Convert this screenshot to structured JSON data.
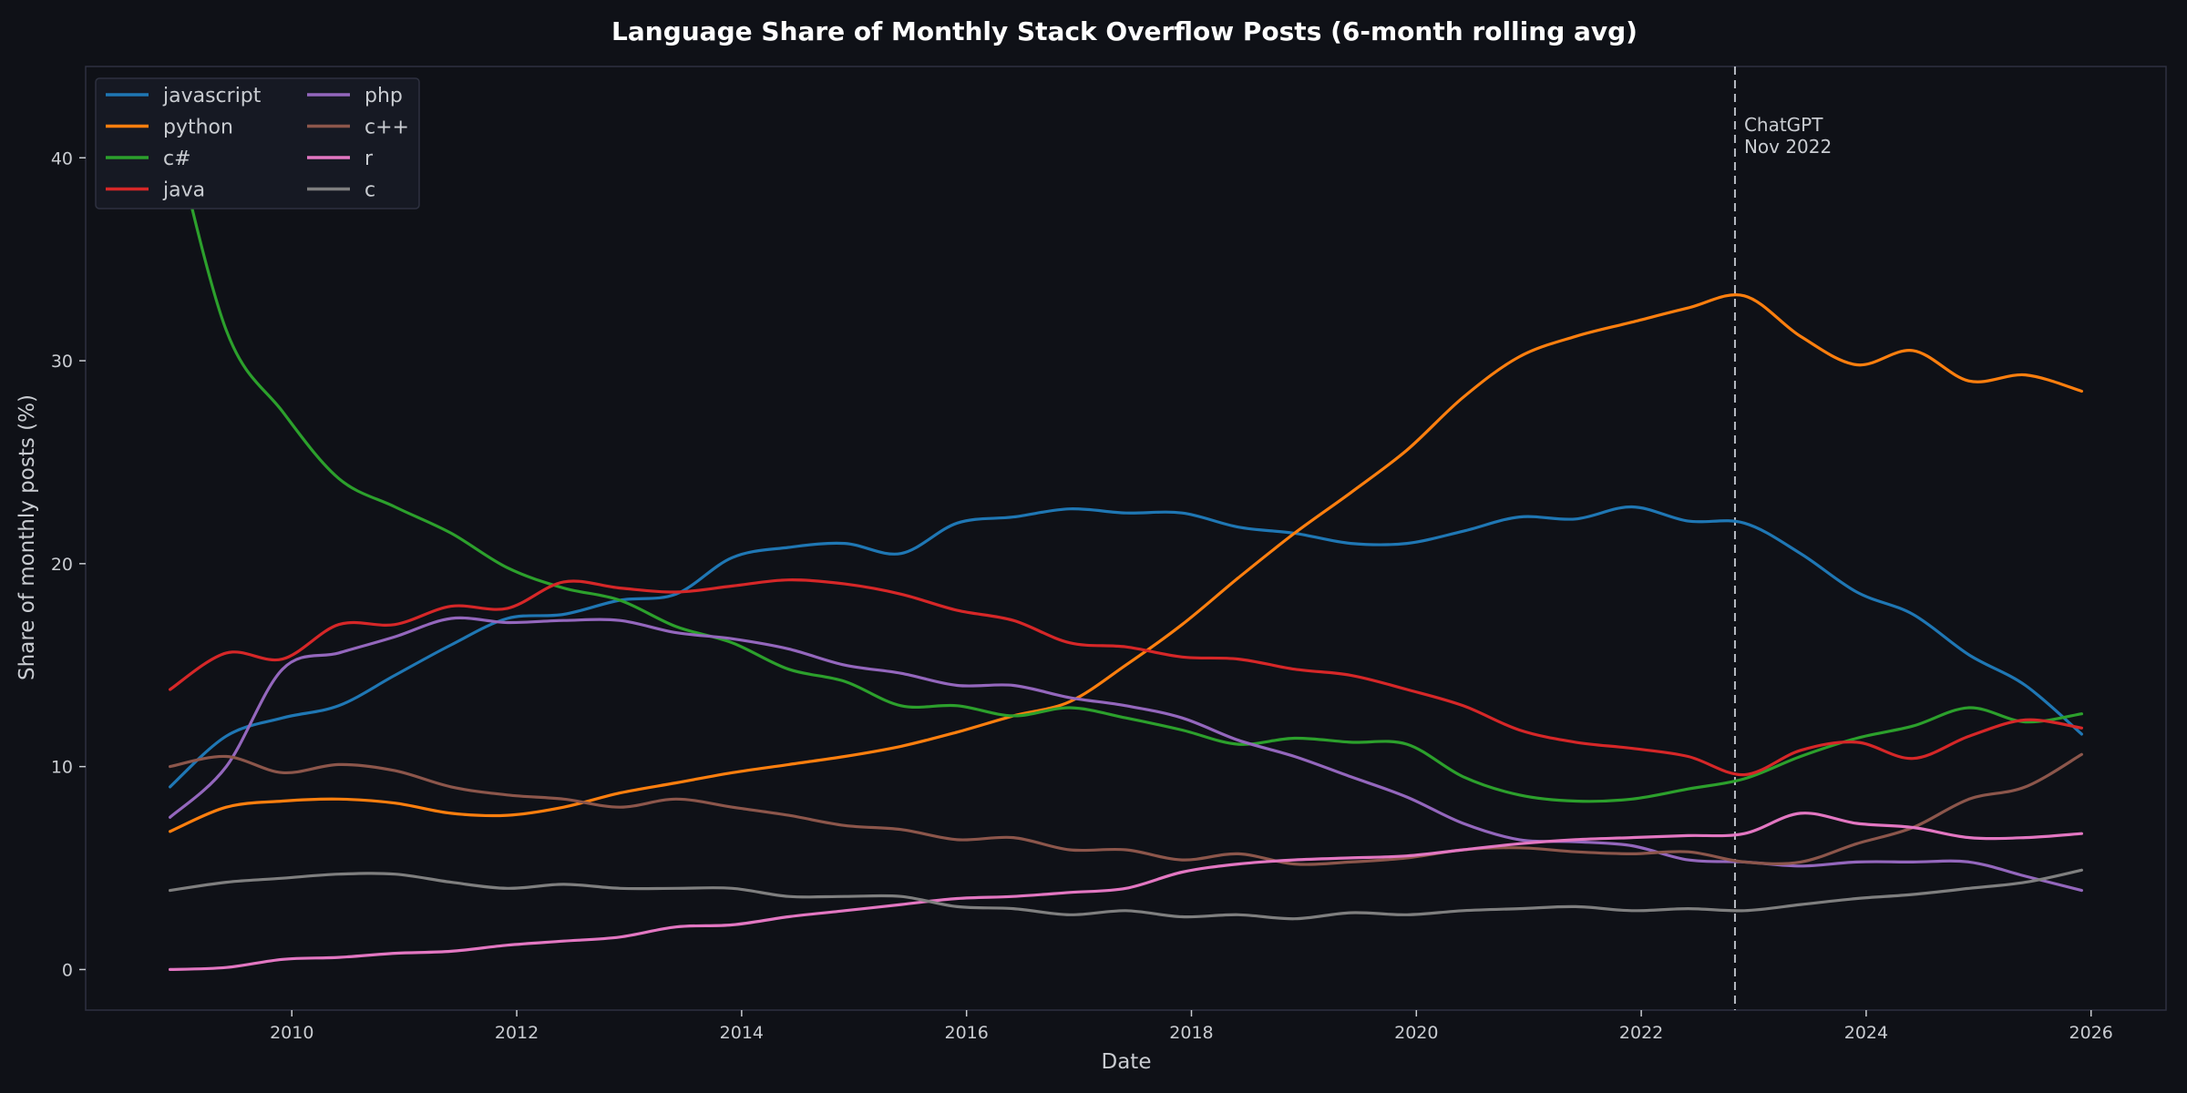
{
  "chart_data": {
    "type": "line",
    "title": "Language Share of Monthly Stack Overflow Posts (6-month rolling avg)",
    "xlabel": "Date",
    "ylabel": "Share of monthly posts (%)",
    "x_range": [
      "2008-03",
      "2026-09"
    ],
    "ylim": [
      -2,
      44.5
    ],
    "x_ticks": [
      "2010",
      "2012",
      "2014",
      "2016",
      "2018",
      "2020",
      "2022",
      "2024",
      "2026"
    ],
    "y_ticks": [
      "0",
      "10",
      "20",
      "30",
      "40"
    ],
    "grid": false,
    "legend_position": "top-left",
    "x": [
      "2008-12",
      "2009-06",
      "2009-12",
      "2010-06",
      "2010-12",
      "2011-06",
      "2011-12",
      "2012-06",
      "2012-12",
      "2013-06",
      "2013-12",
      "2014-06",
      "2014-12",
      "2015-06",
      "2015-12",
      "2016-06",
      "2016-12",
      "2017-06",
      "2017-12",
      "2018-06",
      "2018-12",
      "2019-06",
      "2019-12",
      "2020-06",
      "2020-12",
      "2021-06",
      "2021-12",
      "2022-06",
      "2022-12",
      "2023-06",
      "2023-12",
      "2024-06",
      "2024-12",
      "2025-06",
      "2025-12"
    ],
    "series": [
      {
        "name": "javascript",
        "color": "#1f77b4",
        "values": [
          9.0,
          11.5,
          12.4,
          13.0,
          14.5,
          16.0,
          17.3,
          17.5,
          18.2,
          18.5,
          20.3,
          20.8,
          21.0,
          20.5,
          22.0,
          22.3,
          22.7,
          22.5,
          22.5,
          21.8,
          21.5,
          21.0,
          21.0,
          21.6,
          22.3,
          22.2,
          22.8,
          22.1,
          22.0,
          20.5,
          18.6,
          17.5,
          15.5,
          14.0,
          11.6
        ]
      },
      {
        "name": "python",
        "color": "#ff7f0e",
        "values": [
          6.8,
          8.0,
          8.3,
          8.4,
          8.2,
          7.7,
          7.6,
          8.0,
          8.7,
          9.2,
          9.7,
          10.1,
          10.5,
          11.0,
          11.7,
          12.5,
          13.2,
          15.0,
          17.0,
          19.3,
          21.5,
          23.5,
          25.6,
          28.2,
          30.2,
          31.2,
          31.9,
          32.6,
          33.2,
          31.2,
          29.8,
          30.5,
          29.0,
          29.3,
          28.5
        ]
      },
      {
        "name": "c#",
        "color": "#2ca02c",
        "values": [
          42.0,
          31.5,
          27.5,
          24.2,
          22.8,
          21.5,
          19.8,
          18.8,
          18.2,
          16.9,
          16.1,
          14.8,
          14.2,
          13.0,
          13.0,
          12.5,
          12.9,
          12.4,
          11.8,
          11.1,
          11.4,
          11.2,
          11.1,
          9.5,
          8.6,
          8.3,
          8.4,
          8.9,
          9.4,
          10.5,
          11.4,
          12.0,
          12.9,
          12.2,
          12.6
        ]
      },
      {
        "name": "java",
        "color": "#d62728",
        "values": [
          13.8,
          15.6,
          15.3,
          17.0,
          17.0,
          17.9,
          17.8,
          19.1,
          18.8,
          18.6,
          18.9,
          19.2,
          19.0,
          18.5,
          17.7,
          17.2,
          16.1,
          15.9,
          15.4,
          15.3,
          14.8,
          14.5,
          13.8,
          13.0,
          11.8,
          11.2,
          10.9,
          10.5,
          9.6,
          10.8,
          11.2,
          10.4,
          11.5,
          12.3,
          11.9
        ]
      },
      {
        "name": "php",
        "color": "#9467bd",
        "values": [
          7.5,
          10.0,
          14.8,
          15.6,
          16.4,
          17.3,
          17.1,
          17.2,
          17.2,
          16.6,
          16.3,
          15.8,
          15.0,
          14.6,
          14.0,
          14.0,
          13.4,
          13.0,
          12.4,
          11.3,
          10.5,
          9.5,
          8.5,
          7.2,
          6.4,
          6.3,
          6.1,
          5.4,
          5.3,
          5.1,
          5.3,
          5.3,
          5.3,
          4.6,
          3.9
        ]
      },
      {
        "name": "c++",
        "color": "#8c564b",
        "values": [
          10.0,
          10.5,
          9.7,
          10.1,
          9.8,
          9.0,
          8.6,
          8.4,
          8.0,
          8.4,
          8.0,
          7.6,
          7.1,
          6.9,
          6.4,
          6.5,
          5.9,
          5.9,
          5.4,
          5.7,
          5.2,
          5.3,
          5.5,
          5.9,
          6.0,
          5.8,
          5.7,
          5.8,
          5.3,
          5.3,
          6.2,
          7.0,
          8.4,
          9.0,
          10.6
        ]
      },
      {
        "name": "r",
        "color": "#e377c2",
        "values": [
          0.0,
          0.1,
          0.5,
          0.6,
          0.8,
          0.9,
          1.2,
          1.4,
          1.6,
          2.1,
          2.2,
          2.6,
          2.9,
          3.2,
          3.5,
          3.6,
          3.8,
          4.0,
          4.8,
          5.2,
          5.4,
          5.5,
          5.6,
          5.9,
          6.2,
          6.4,
          6.5,
          6.6,
          6.7,
          7.7,
          7.2,
          7.0,
          6.5,
          6.5,
          6.7
        ]
      },
      {
        "name": "c",
        "color": "#7f7f7f",
        "values": [
          3.9,
          4.3,
          4.5,
          4.7,
          4.7,
          4.3,
          4.0,
          4.2,
          4.0,
          4.0,
          4.0,
          3.6,
          3.6,
          3.6,
          3.1,
          3.0,
          2.7,
          2.9,
          2.6,
          2.7,
          2.5,
          2.8,
          2.7,
          2.9,
          3.0,
          3.1,
          2.9,
          3.0,
          2.9,
          3.2,
          3.5,
          3.7,
          4.0,
          4.3,
          4.9
        ]
      }
    ],
    "annotations": [
      {
        "date": "2022-11",
        "line_style": "dashed",
        "label_lines": [
          "ChatGPT",
          "Nov 2022"
        ]
      }
    ]
  }
}
